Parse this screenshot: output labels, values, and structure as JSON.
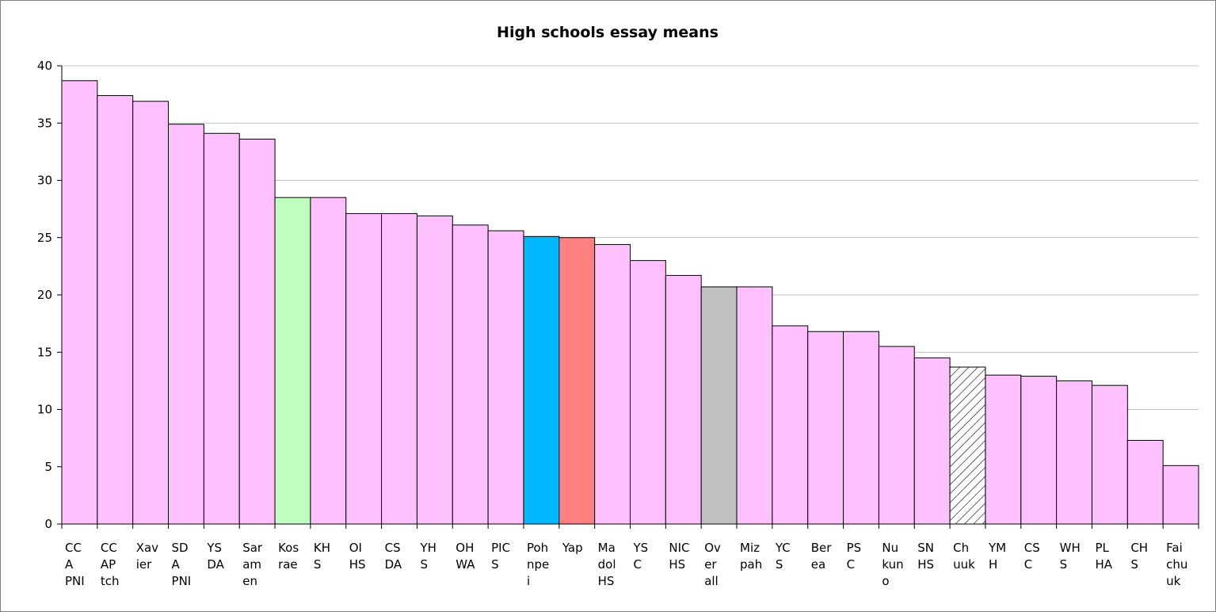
{
  "chart_data": {
    "type": "bar",
    "title": "High schools essay means",
    "categories": [
      "CC A PNI",
      "CC AP tch",
      "Xav ier",
      "SD A PNI",
      "YS DA",
      "Sar am en",
      "Kos rae",
      "KH S",
      "OI HS",
      "CS DA",
      "YH S",
      "OH WA",
      "PIC S",
      "Poh npe i",
      "Yap",
      "Ma dol HS",
      "YS C",
      "NIC HS",
      "Ov er all",
      "Miz pah",
      "YC S",
      "Ber ea",
      "PS C",
      "Nu kun o",
      "SN HS",
      "Ch uuk",
      "YM H",
      "CS C",
      "WH S",
      "PL HA",
      "CH S",
      "Fai chu uk"
    ],
    "values": [
      38.7,
      37.4,
      36.9,
      34.9,
      34.1,
      33.6,
      28.5,
      28.5,
      27.1,
      27.1,
      26.9,
      26.1,
      25.6,
      25.1,
      25.0,
      24.4,
      23.0,
      21.7,
      20.7,
      20.7,
      17.3,
      16.8,
      16.8,
      15.5,
      14.5,
      13.7,
      13.0,
      12.9,
      12.5,
      12.1,
      7.3,
      5.1
    ],
    "colors": [
      "#ffc0ff",
      "#ffc0ff",
      "#ffc0ff",
      "#ffc0ff",
      "#ffc0ff",
      "#ffc0ff",
      "#c0ffc0",
      "#ffc0ff",
      "#ffc0ff",
      "#ffc0ff",
      "#ffc0ff",
      "#ffc0ff",
      "#ffc0ff",
      "#00b8ff",
      "#ff8080",
      "#ffc0ff",
      "#ffc0ff",
      "#ffc0ff",
      "#c0c0c0",
      "#ffc0ff",
      "#ffc0ff",
      "#ffc0ff",
      "#ffc0ff",
      "#ffc0ff",
      "#ffc0ff",
      "#ffffff",
      "#ffc0ff",
      "#ffc0ff",
      "#ffc0ff",
      "#ffc0ff",
      "#ffc0ff",
      "#ffc0ff"
    ],
    "hatched": [
      "Ch uuk"
    ],
    "ylim": [
      0,
      40
    ],
    "yticks": [
      0,
      5,
      10,
      15,
      20,
      25,
      30,
      35,
      40
    ],
    "grid": true
  }
}
